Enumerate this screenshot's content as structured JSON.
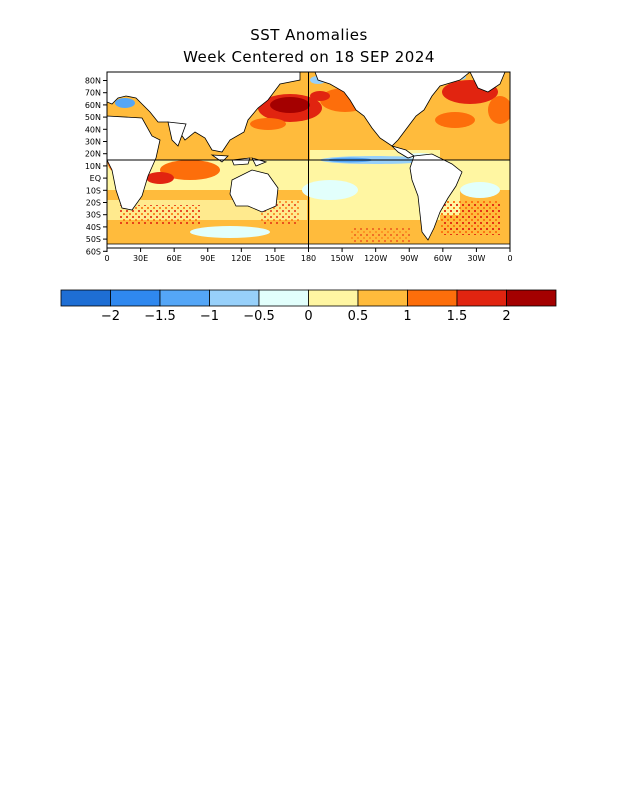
{
  "title_line1": "SST Anomalies",
  "title_line2": "Week Centered on 18 SEP 2024",
  "map": {
    "lat_labels": [
      "80N",
      "70N",
      "60N",
      "50N",
      "40N",
      "30N",
      "20N",
      "10N",
      "EQ",
      "10S",
      "20S",
      "30S",
      "40S",
      "50S",
      "60S"
    ],
    "lon_labels": [
      "0",
      "30E",
      "60E",
      "90E",
      "120E",
      "150E",
      "180",
      "150W",
      "120W",
      "90W",
      "60W",
      "30W",
      "0"
    ],
    "land_color": "#ffffff",
    "coastline_color": "#000000"
  },
  "colorbar": {
    "colors": [
      "#1e6ed4",
      "#2f88ef",
      "#54a6f7",
      "#97d0fa",
      "#e2fffc",
      "#fff6a2",
      "#ffbb3c",
      "#fd6e0b",
      "#e12410",
      "#a40000"
    ],
    "tick_labels": [
      "−2",
      "−1.5",
      "−1",
      "−0.5",
      "0",
      "0.5",
      "1",
      "1.5",
      "2"
    ]
  }
}
